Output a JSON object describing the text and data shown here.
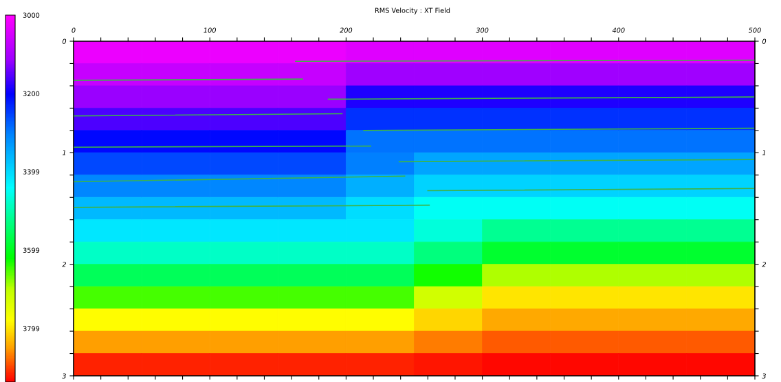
{
  "chart_data": {
    "type": "heatmap",
    "title": "RMS Velocity : XT Field",
    "x": [
      25,
      75,
      125,
      175,
      225,
      275,
      325,
      375,
      425,
      475
    ],
    "y": [
      0.1,
      0.3,
      0.5,
      0.7,
      0.9,
      1.1,
      1.3,
      1.5,
      1.7,
      1.9,
      2.1,
      2.3,
      2.5,
      2.7,
      2.9
    ],
    "cells": [
      [
        3023,
        3023,
        3023,
        3023,
        3037,
        3037,
        3037,
        3037,
        3037,
        3037
      ],
      [
        3068,
        3068,
        3068,
        3068,
        3111,
        3111,
        3111,
        3111,
        3111,
        3111
      ],
      [
        3114,
        3114,
        3114,
        3114,
        3185,
        3185,
        3185,
        3185,
        3185,
        3185
      ],
      [
        3159,
        3159,
        3159,
        3159,
        3241,
        3241,
        3241,
        3241,
        3241,
        3241
      ],
      [
        3205,
        3205,
        3205,
        3205,
        3292,
        3292,
        3292,
        3292,
        3292,
        3292
      ],
      [
        3257,
        3257,
        3257,
        3257,
        3300,
        3343,
        3343,
        3343,
        3343,
        3343
      ],
      [
        3310,
        3310,
        3310,
        3310,
        3352,
        3394,
        3394,
        3394,
        3394,
        3394
      ],
      [
        3362,
        3362,
        3362,
        3362,
        3404,
        3447,
        3447,
        3447,
        3447,
        3447
      ],
      [
        3414,
        3414,
        3414,
        3414,
        3414,
        3465,
        3516,
        3516,
        3516,
        3516
      ],
      [
        3479,
        3479,
        3479,
        3479,
        3479,
        3532,
        3585,
        3585,
        3585,
        3585
      ],
      [
        3557,
        3557,
        3557,
        3557,
        3557,
        3625,
        3693,
        3693,
        3693,
        3693
      ],
      [
        3647,
        3647,
        3647,
        3647,
        3647,
        3722,
        3797,
        3797,
        3797,
        3797
      ],
      [
        3780,
        3780,
        3780,
        3780,
        3780,
        3810,
        3841,
        3841,
        3841,
        3841
      ],
      [
        3848,
        3848,
        3848,
        3848,
        3848,
        3866,
        3885,
        3885,
        3885,
        3885
      ],
      [
        3916,
        3916,
        3916,
        3916,
        3916,
        3922,
        3928,
        3928,
        3928,
        3928
      ]
    ],
    "clim": [
      3000,
      3935
    ],
    "cticks": [
      3000,
      3200,
      3399,
      3599,
      3799
    ],
    "xlim": [
      0,
      500
    ],
    "xticks": [
      0,
      {
        "value": 20,
        "label": null
      },
      {
        "value": 40,
        "label": null
      },
      {
        "value": 60,
        "label": null
      },
      {
        "value": 80,
        "label": null
      },
      100,
      {
        "value": 120,
        "label": null
      },
      {
        "value": 140,
        "label": null
      },
      {
        "value": 160,
        "label": null
      },
      {
        "value": 180,
        "label": null
      },
      200,
      {
        "value": 220,
        "label": null
      },
      {
        "value": 240,
        "label": null
      },
      {
        "value": 260,
        "label": null
      },
      {
        "value": 280,
        "label": null
      },
      300,
      {
        "value": 320,
        "label": null
      },
      {
        "value": 340,
        "label": null
      },
      {
        "value": 360,
        "label": null
      },
      {
        "value": 380,
        "label": null
      },
      400,
      {
        "value": 420,
        "label": null
      },
      {
        "value": 440,
        "label": null
      },
      {
        "value": 460,
        "label": null
      },
      {
        "value": 480,
        "label": null
      },
      500
    ],
    "ylim": [
      3,
      0
    ],
    "yticks": [
      0,
      {
        "value": 0.2,
        "label": null
      },
      {
        "value": 0.4,
        "label": null
      },
      {
        "value": 0.6,
        "label": null
      },
      {
        "value": 0.8,
        "label": null
      },
      1,
      {
        "value": 1.2,
        "label": null
      },
      {
        "value": 1.4,
        "label": null
      },
      {
        "value": 1.6,
        "label": null
      },
      {
        "value": 1.8,
        "label": null
      },
      2,
      {
        "value": 2.2,
        "label": null
      },
      {
        "value": 2.4,
        "label": null
      },
      {
        "value": 2.6,
        "label": null
      },
      {
        "value": 2.8,
        "label": null
      },
      3
    ],
    "y2lim": [
      3,
      0
    ],
    "y2ticks": [
      0,
      {
        "value": 0.2,
        "label": null
      },
      {
        "value": 0.4,
        "label": null
      },
      {
        "value": 0.6,
        "label": null
      },
      {
        "value": 0.8,
        "label": null
      },
      1,
      {
        "value": 1.2,
        "label": null
      },
      {
        "value": 1.4,
        "label": null
      },
      {
        "value": 1.6,
        "label": null
      },
      {
        "value": 1.8,
        "label": null
      },
      2,
      {
        "value": 2.2,
        "label": null
      },
      {
        "value": 2.4,
        "label": null
      },
      {
        "value": 2.6,
        "label": null
      },
      {
        "value": 2.8,
        "label": null
      },
      3
    ],
    "grid": false,
    "series": [
      {
        "type": "line",
        "color": "#3cb44b",
        "x": [
          163,
          500
        ],
        "values": [
          0.18,
          0.17
        ]
      },
      {
        "type": "line",
        "color": "#3cb44b",
        "x": [
          0,
          168
        ],
        "values": [
          0.35,
          0.34
        ]
      },
      {
        "type": "line",
        "color": "#3cb44b",
        "x": [
          187,
          499
        ],
        "values": [
          0.52,
          0.5
        ]
      },
      {
        "type": "line",
        "color": "#3cb44b",
        "x": [
          0,
          197
        ],
        "values": [
          0.67,
          0.65
        ]
      },
      {
        "type": "line",
        "color": "#3cb44b",
        "x": [
          213,
          499
        ],
        "values": [
          0.8,
          0.78
        ]
      },
      {
        "type": "line",
        "color": "#3cb44b",
        "x": [
          0,
          218
        ],
        "values": [
          0.95,
          0.94
        ]
      },
      {
        "type": "line",
        "color": "#3cb44b",
        "x": [
          239,
          499
        ],
        "values": [
          1.08,
          1.06
        ]
      },
      {
        "type": "line",
        "color": "#3cb44b",
        "x": [
          0,
          243
        ],
        "values": [
          1.26,
          1.21
        ]
      },
      {
        "type": "line",
        "color": "#3cb44b",
        "x": [
          260,
          499
        ],
        "values": [
          1.34,
          1.32
        ]
      },
      {
        "type": "line",
        "color": "#3cb44b",
        "x": [
          0,
          261
        ],
        "values": [
          1.49,
          1.47
        ]
      }
    ]
  }
}
